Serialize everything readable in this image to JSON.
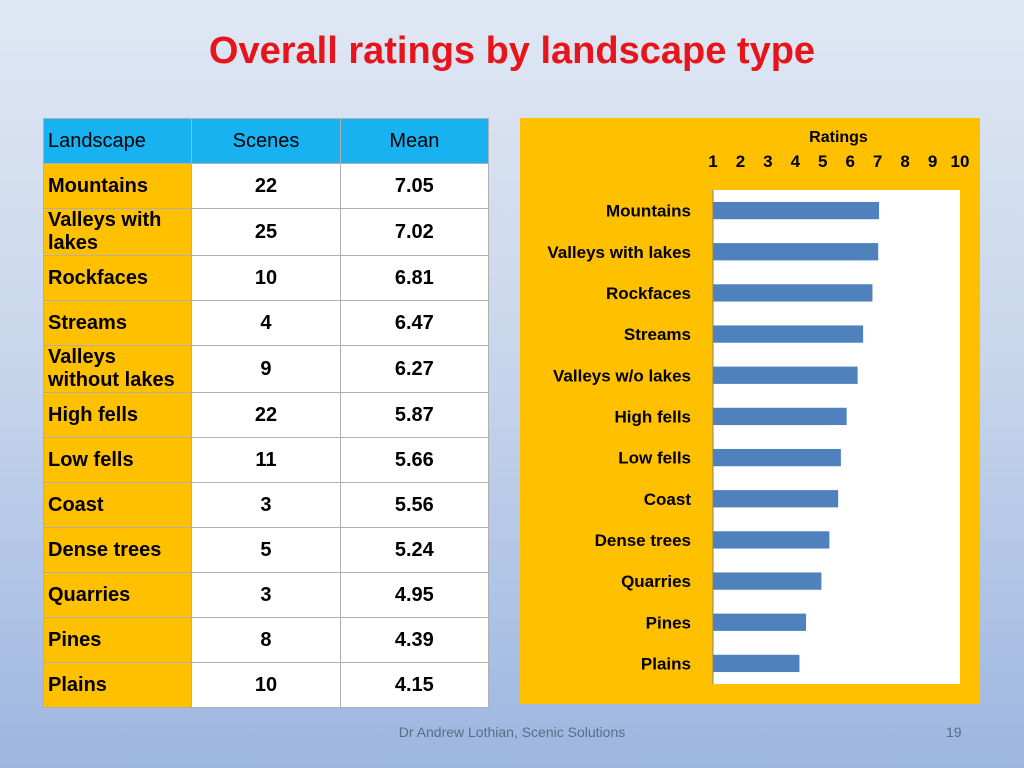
{
  "title": "Overall ratings by landscape type",
  "table": {
    "headers": [
      "Landscape",
      "Scenes",
      "Mean"
    ],
    "rows": [
      [
        "Mountains",
        "22",
        "7.05"
      ],
      [
        "Valleys with lakes",
        "25",
        "7.02"
      ],
      [
        "Rockfaces",
        "10",
        "6.81"
      ],
      [
        "Streams",
        "4",
        "6.47"
      ],
      [
        "Valleys without lakes",
        "9",
        "6.27"
      ],
      [
        "High fells",
        "22",
        "5.87"
      ],
      [
        "Low fells",
        "11",
        "5.66"
      ],
      [
        "Coast",
        "3",
        "5.56"
      ],
      [
        "Dense trees",
        "5",
        "5.24"
      ],
      [
        "Quarries",
        "3",
        "4.95"
      ],
      [
        "Pines",
        "8",
        "4.39"
      ],
      [
        "Plains",
        "10",
        "4.15"
      ]
    ]
  },
  "chart_data": {
    "type": "bar",
    "orientation": "horizontal",
    "title": "Ratings",
    "xlabel": "",
    "ylabel": "",
    "categories": [
      "Mountains",
      "Valleys with lakes",
      "Rockfaces",
      "Streams",
      "Valleys w/o lakes",
      "High fells",
      "Low fells",
      "Coast",
      "Dense trees",
      "Quarries",
      "Pines",
      "Plains"
    ],
    "values": [
      7.05,
      7.02,
      6.81,
      6.47,
      6.27,
      5.87,
      5.66,
      5.56,
      5.24,
      4.95,
      4.39,
      4.15
    ],
    "xlim": [
      1,
      10
    ],
    "xticks": [
      "1",
      "2",
      "3",
      "4",
      "5",
      "6",
      "7",
      "8",
      "9",
      "10"
    ],
    "axis_position": "top",
    "grid": false,
    "legend": "none",
    "bar_color": "#4f81bd",
    "panel_color": "#ffc000"
  },
  "footer": "Dr Andrew Lothian, Scenic Solutions",
  "page_number": "19"
}
